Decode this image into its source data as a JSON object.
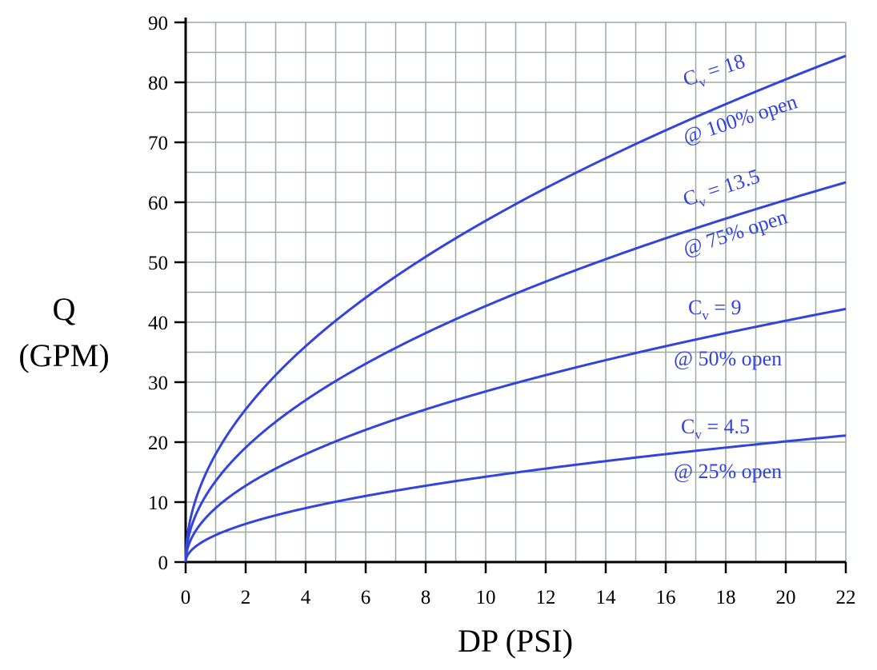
{
  "chart_data": {
    "type": "line",
    "xlabel": "DP (PSI)",
    "ylabel_line1": "Q",
    "ylabel_line2": "(GPM)",
    "xlim": [
      0,
      22
    ],
    "ylim": [
      0,
      90
    ],
    "x_ticks": [
      "0",
      "2",
      "4",
      "6",
      "8",
      "10",
      "12",
      "14",
      "16",
      "18",
      "20",
      "22"
    ],
    "y_ticks": [
      "0",
      "10",
      "20",
      "30",
      "40",
      "50",
      "60",
      "70",
      "80",
      "90"
    ],
    "grid": true,
    "grid_minor_x": 1,
    "grid_minor_y": 5,
    "x": [
      0,
      0.05,
      0.25,
      0.5,
      1,
      2,
      3,
      4,
      5,
      6,
      7,
      8,
      9,
      10,
      11,
      12,
      13,
      14,
      15,
      16,
      17,
      18,
      19,
      20,
      21,
      22
    ],
    "series": [
      {
        "name": "Cv = 18",
        "cv": 18,
        "values": [
          0,
          4.0,
          9.0,
          12.7,
          18.0,
          25.5,
          31.2,
          36.0,
          40.2,
          44.1,
          47.6,
          50.9,
          54.0,
          56.9,
          59.7,
          62.4,
          64.9,
          67.3,
          69.7,
          72.0,
          74.2,
          76.4,
          78.5,
          80.5,
          82.5,
          84.4
        ],
        "label_line1_main": "C",
        "label_line1_sub": "v",
        "label_line1_rest": " = 18",
        "label_line2": "@ 100% open"
      },
      {
        "name": "Cv = 13.5",
        "cv": 13.5,
        "values": [
          0,
          3.0,
          6.8,
          9.5,
          13.5,
          19.1,
          23.4,
          27.0,
          30.2,
          33.1,
          35.7,
          38.2,
          40.5,
          42.7,
          44.8,
          46.8,
          48.7,
          50.5,
          52.3,
          54.0,
          55.7,
          57.3,
          58.8,
          60.4,
          61.9,
          63.3
        ],
        "label_line1_main": "C",
        "label_line1_sub": "v",
        "label_line1_rest": " = 13.5",
        "label_line2": "@ 75% open"
      },
      {
        "name": "Cv = 9",
        "cv": 9,
        "values": [
          0,
          2.0,
          4.5,
          6.4,
          9.0,
          12.7,
          15.6,
          18.0,
          20.1,
          22.0,
          23.8,
          25.5,
          27.0,
          28.5,
          29.8,
          31.2,
          32.4,
          33.7,
          34.9,
          36.0,
          37.1,
          38.2,
          39.2,
          40.2,
          41.2,
          42.2
        ],
        "label_line1_main": "C",
        "label_line1_sub": "v",
        "label_line1_rest": " = 9",
        "label_line2": "@ 50% open"
      },
      {
        "name": "Cv = 4.5",
        "cv": 4.5,
        "values": [
          0,
          1.0,
          2.3,
          3.2,
          4.5,
          6.4,
          7.8,
          9.0,
          10.1,
          11.0,
          11.9,
          12.7,
          13.5,
          14.2,
          14.9,
          15.6,
          16.2,
          16.8,
          17.4,
          18.0,
          18.6,
          19.1,
          19.6,
          20.1,
          20.6,
          21.1
        ],
        "label_line1_main": "C",
        "label_line1_sub": "v",
        "label_line1_rest": " = 4.5",
        "label_line2": "@ 25% open"
      }
    ],
    "colors": {
      "curve": "#3344dd",
      "grid": "#9aaaa2",
      "axis": "#000000"
    }
  }
}
